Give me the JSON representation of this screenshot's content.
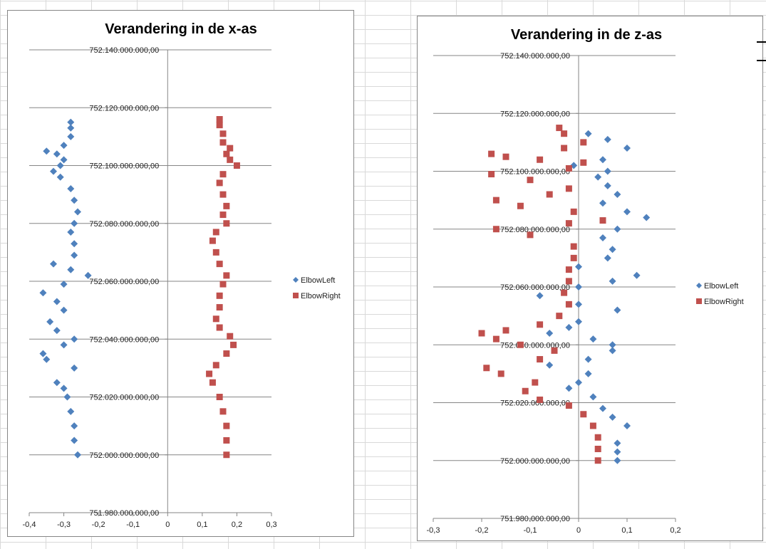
{
  "colors": {
    "ElbowLeft": "#4f81bd",
    "ElbowRight": "#c0504d",
    "gridline": "#868686",
    "axis": "#868686"
  },
  "icons": {
    "ElbowLeft": "diamond-marker",
    "ElbowRight": "square-marker"
  },
  "chart_data": [
    {
      "type": "scatter",
      "title": "Verandering in de x-as",
      "xlim": [
        -0.4,
        0.3
      ],
      "ylim": [
        751980000000,
        752140000000
      ],
      "x_ticks": [
        "-0,4",
        "-0,3",
        "-0,2",
        "-0,1",
        "0",
        "0,1",
        "0,2",
        "0,3"
      ],
      "x_tick_values": [
        -0.4,
        -0.3,
        -0.2,
        -0.1,
        0,
        0.1,
        0.2,
        0.3
      ],
      "y_ticks": [
        "752.140.000.000,00",
        "752.120.000.000,00",
        "752.100.000.000,00",
        "752.080.000.000,00",
        "752.060.000.000,00",
        "752.040.000.000,00",
        "752.020.000.000,00",
        "752.000.000.000,00",
        "751.980.000.000,00"
      ],
      "y_tick_values": [
        752140000000,
        752120000000,
        752100000000,
        752080000000,
        752060000000,
        752040000000,
        752020000000,
        752000000000,
        751980000000
      ],
      "grid": "horizontal",
      "legend": "right",
      "series": [
        {
          "name": "ElbowLeft",
          "marker": "diamond",
          "points": [
            [
              -0.26,
              752000000000
            ],
            [
              -0.27,
              752005000000
            ],
            [
              -0.27,
              752010000000
            ],
            [
              -0.28,
              752015000000
            ],
            [
              -0.29,
              752020000000
            ],
            [
              -0.3,
              752023000000
            ],
            [
              -0.32,
              752025000000
            ],
            [
              -0.27,
              752030000000
            ],
            [
              -0.35,
              752033000000
            ],
            [
              -0.36,
              752035000000
            ],
            [
              -0.3,
              752038000000
            ],
            [
              -0.27,
              752040000000
            ],
            [
              -0.32,
              752043000000
            ],
            [
              -0.34,
              752046000000
            ],
            [
              -0.3,
              752050000000
            ],
            [
              -0.32,
              752053000000
            ],
            [
              -0.36,
              752056000000
            ],
            [
              -0.3,
              752059000000
            ],
            [
              -0.23,
              752062000000
            ],
            [
              -0.28,
              752064000000
            ],
            [
              -0.33,
              752066000000
            ],
            [
              -0.27,
              752069000000
            ],
            [
              -0.27,
              752073000000
            ],
            [
              -0.28,
              752077000000
            ],
            [
              -0.27,
              752080000000
            ],
            [
              -0.26,
              752084000000
            ],
            [
              -0.27,
              752088000000
            ],
            [
              -0.28,
              752092000000
            ],
            [
              -0.31,
              752096000000
            ],
            [
              -0.33,
              752098000000
            ],
            [
              -0.31,
              752100000000
            ],
            [
              -0.3,
              752102000000
            ],
            [
              -0.32,
              752104000000
            ],
            [
              -0.35,
              752105000000
            ],
            [
              -0.3,
              752107000000
            ],
            [
              -0.28,
              752110000000
            ],
            [
              -0.28,
              752113000000
            ],
            [
              -0.28,
              752115000000
            ]
          ]
        },
        {
          "name": "ElbowRight",
          "marker": "square",
          "points": [
            [
              0.17,
              752000000000
            ],
            [
              0.17,
              752005000000
            ],
            [
              0.17,
              752010000000
            ],
            [
              0.16,
              752015000000
            ],
            [
              0.15,
              752020000000
            ],
            [
              0.13,
              752025000000
            ],
            [
              0.12,
              752028000000
            ],
            [
              0.14,
              752031000000
            ],
            [
              0.17,
              752035000000
            ],
            [
              0.19,
              752038000000
            ],
            [
              0.18,
              752041000000
            ],
            [
              0.15,
              752044000000
            ],
            [
              0.14,
              752047000000
            ],
            [
              0.15,
              752051000000
            ],
            [
              0.15,
              752055000000
            ],
            [
              0.16,
              752059000000
            ],
            [
              0.17,
              752062000000
            ],
            [
              0.15,
              752066000000
            ],
            [
              0.14,
              752070000000
            ],
            [
              0.13,
              752074000000
            ],
            [
              0.14,
              752077000000
            ],
            [
              0.17,
              752080000000
            ],
            [
              0.16,
              752083000000
            ],
            [
              0.17,
              752086000000
            ],
            [
              0.16,
              752090000000
            ],
            [
              0.15,
              752094000000
            ],
            [
              0.16,
              752097000000
            ],
            [
              0.2,
              752100000000
            ],
            [
              0.18,
              752102000000
            ],
            [
              0.17,
              752104000000
            ],
            [
              0.18,
              752106000000
            ],
            [
              0.16,
              752108000000
            ],
            [
              0.16,
              752111000000
            ],
            [
              0.15,
              752114000000
            ],
            [
              0.15,
              752116000000
            ]
          ]
        }
      ]
    },
    {
      "type": "scatter",
      "title": "Verandering in de z-as",
      "xlim": [
        -0.3,
        0.2
      ],
      "ylim": [
        751980000000,
        752140000000
      ],
      "x_ticks": [
        "-0,3",
        "-0,2",
        "-0,1",
        "0",
        "0,1",
        "0,2"
      ],
      "x_tick_values": [
        -0.3,
        -0.2,
        -0.1,
        0,
        0.1,
        0.2
      ],
      "y_ticks": [
        "752.140.000.000,00",
        "752.120.000.000,00",
        "752.100.000.000,00",
        "752.080.000.000,00",
        "752.060.000.000,00",
        "752.040.000.000,00",
        "752.020.000.000,00",
        "752.000.000.000,00",
        "751.980.000.000,00"
      ],
      "y_tick_values": [
        752140000000,
        752120000000,
        752100000000,
        752080000000,
        752060000000,
        752040000000,
        752020000000,
        752000000000,
        751980000000
      ],
      "grid": "horizontal",
      "legend": "right",
      "series": [
        {
          "name": "ElbowLeft",
          "marker": "diamond",
          "points": [
            [
              0.08,
              752000000000
            ],
            [
              0.08,
              752003000000
            ],
            [
              0.08,
              752006000000
            ],
            [
              0.1,
              752012000000
            ],
            [
              0.07,
              752015000000
            ],
            [
              0.05,
              752018000000
            ],
            [
              0.03,
              752022000000
            ],
            [
              -0.02,
              752025000000
            ],
            [
              0.0,
              752027000000
            ],
            [
              0.02,
              752030000000
            ],
            [
              -0.06,
              752033000000
            ],
            [
              0.02,
              752035000000
            ],
            [
              0.07,
              752038000000
            ],
            [
              0.07,
              752040000000
            ],
            [
              0.03,
              752042000000
            ],
            [
              -0.06,
              752044000000
            ],
            [
              -0.02,
              752046000000
            ],
            [
              0.0,
              752048000000
            ],
            [
              0.08,
              752052000000
            ],
            [
              0.0,
              752054000000
            ],
            [
              -0.08,
              752057000000
            ],
            [
              0.0,
              752060000000
            ],
            [
              0.07,
              752062000000
            ],
            [
              0.12,
              752064000000
            ],
            [
              0.0,
              752067000000
            ],
            [
              0.06,
              752070000000
            ],
            [
              0.07,
              752073000000
            ],
            [
              0.05,
              752077000000
            ],
            [
              0.08,
              752080000000
            ],
            [
              0.14,
              752084000000
            ],
            [
              0.1,
              752086000000
            ],
            [
              0.05,
              752089000000
            ],
            [
              0.08,
              752092000000
            ],
            [
              0.06,
              752095000000
            ],
            [
              0.04,
              752098000000
            ],
            [
              0.06,
              752100000000
            ],
            [
              -0.01,
              752102000000
            ],
            [
              0.05,
              752104000000
            ],
            [
              0.1,
              752108000000
            ],
            [
              0.06,
              752111000000
            ],
            [
              0.02,
              752113000000
            ]
          ]
        },
        {
          "name": "ElbowRight",
          "marker": "square",
          "points": [
            [
              0.04,
              752000000000
            ],
            [
              0.04,
              752004000000
            ],
            [
              0.04,
              752008000000
            ],
            [
              0.03,
              752012000000
            ],
            [
              0.01,
              752016000000
            ],
            [
              -0.02,
              752019000000
            ],
            [
              -0.08,
              752021000000
            ],
            [
              -0.11,
              752024000000
            ],
            [
              -0.09,
              752027000000
            ],
            [
              -0.16,
              752030000000
            ],
            [
              -0.19,
              752032000000
            ],
            [
              -0.08,
              752035000000
            ],
            [
              -0.05,
              752038000000
            ],
            [
              -0.12,
              752040000000
            ],
            [
              -0.17,
              752042000000
            ],
            [
              -0.2,
              752044000000
            ],
            [
              -0.15,
              752045000000
            ],
            [
              -0.08,
              752047000000
            ],
            [
              -0.04,
              752050000000
            ],
            [
              -0.02,
              752054000000
            ],
            [
              -0.03,
              752058000000
            ],
            [
              -0.02,
              752062000000
            ],
            [
              -0.02,
              752066000000
            ],
            [
              -0.01,
              752070000000
            ],
            [
              -0.01,
              752074000000
            ],
            [
              -0.1,
              752078000000
            ],
            [
              -0.17,
              752080000000
            ],
            [
              -0.02,
              752082000000
            ],
            [
              0.05,
              752083000000
            ],
            [
              -0.01,
              752086000000
            ],
            [
              -0.12,
              752088000000
            ],
            [
              -0.17,
              752090000000
            ],
            [
              -0.06,
              752092000000
            ],
            [
              -0.02,
              752094000000
            ],
            [
              -0.1,
              752097000000
            ],
            [
              -0.18,
              752099000000
            ],
            [
              -0.02,
              752101000000
            ],
            [
              0.01,
              752103000000
            ],
            [
              -0.08,
              752104000000
            ],
            [
              -0.15,
              752105000000
            ],
            [
              -0.18,
              752106000000
            ],
            [
              -0.03,
              752108000000
            ],
            [
              0.01,
              752110000000
            ],
            [
              -0.03,
              752113000000
            ],
            [
              -0.04,
              752115000000
            ]
          ]
        }
      ]
    }
  ]
}
